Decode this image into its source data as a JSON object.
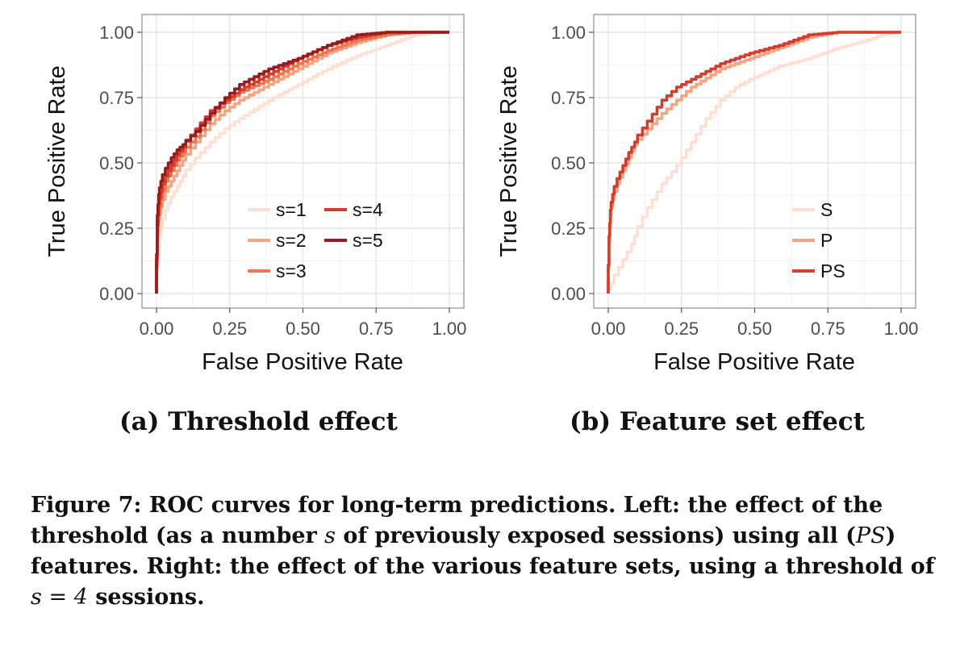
{
  "chart_data": [
    {
      "type": "line",
      "xlabel": "False Positive Rate",
      "ylabel": "True Positive Rate",
      "xlim": [
        0,
        1
      ],
      "ylim": [
        0,
        1
      ],
      "xticks": [
        "0.00",
        "0.25",
        "0.50",
        "0.75",
        "1.00"
      ],
      "yticks": [
        "0.00",
        "0.25",
        "0.50",
        "0.75",
        "1.00"
      ],
      "grid": true,
      "legend_position": "bottom-right",
      "legend_columns": 2,
      "series": [
        {
          "name": "s=1",
          "color": "#fde0d2",
          "x": [
            0,
            0.005,
            0.01,
            0.02,
            0.04,
            0.06,
            0.08,
            0.1,
            0.15,
            0.2,
            0.25,
            0.3,
            0.4,
            0.5,
            0.6,
            0.7,
            0.8,
            0.9,
            1.0
          ],
          "y": [
            0,
            0.1,
            0.18,
            0.25,
            0.32,
            0.37,
            0.41,
            0.45,
            0.52,
            0.58,
            0.63,
            0.67,
            0.74,
            0.8,
            0.86,
            0.91,
            0.95,
            0.99,
            1.0
          ]
        },
        {
          "name": "s=2",
          "color": "#f6a582",
          "x": [
            0,
            0.005,
            0.01,
            0.02,
            0.04,
            0.06,
            0.08,
            0.1,
            0.15,
            0.2,
            0.25,
            0.3,
            0.4,
            0.5,
            0.6,
            0.7,
            0.8,
            0.9,
            1.0
          ],
          "y": [
            0,
            0.2,
            0.28,
            0.33,
            0.39,
            0.43,
            0.47,
            0.51,
            0.58,
            0.65,
            0.7,
            0.74,
            0.8,
            0.86,
            0.92,
            0.96,
            0.99,
            1.0,
            1.0
          ]
        },
        {
          "name": "s=3",
          "color": "#ef7652",
          "x": [
            0,
            0.005,
            0.01,
            0.02,
            0.04,
            0.06,
            0.08,
            0.1,
            0.15,
            0.2,
            0.25,
            0.3,
            0.4,
            0.5,
            0.6,
            0.7,
            0.8,
            0.9,
            1.0
          ],
          "y": [
            0,
            0.22,
            0.3,
            0.36,
            0.43,
            0.47,
            0.51,
            0.54,
            0.6,
            0.68,
            0.73,
            0.77,
            0.82,
            0.88,
            0.93,
            0.97,
            0.99,
            1.0,
            1.0
          ]
        },
        {
          "name": "s=4",
          "color": "#d43d2c",
          "x": [
            0,
            0.005,
            0.01,
            0.02,
            0.04,
            0.06,
            0.08,
            0.1,
            0.15,
            0.2,
            0.25,
            0.3,
            0.4,
            0.5,
            0.6,
            0.7,
            0.8,
            0.9,
            1.0
          ],
          "y": [
            0,
            0.26,
            0.34,
            0.39,
            0.45,
            0.49,
            0.53,
            0.56,
            0.63,
            0.7,
            0.74,
            0.78,
            0.84,
            0.9,
            0.95,
            0.98,
            1.0,
            1.0,
            1.0
          ]
        },
        {
          "name": "s=5",
          "color": "#991b1b",
          "x": [
            0,
            0.005,
            0.01,
            0.02,
            0.04,
            0.06,
            0.08,
            0.1,
            0.15,
            0.2,
            0.25,
            0.3,
            0.4,
            0.5,
            0.6,
            0.7,
            0.8,
            0.9,
            1.0
          ],
          "y": [
            0,
            0.3,
            0.38,
            0.43,
            0.48,
            0.52,
            0.55,
            0.57,
            0.62,
            0.69,
            0.75,
            0.8,
            0.86,
            0.9,
            0.95,
            0.99,
            1.0,
            1.0,
            1.0
          ]
        }
      ]
    },
    {
      "type": "line",
      "xlabel": "False Positive Rate",
      "ylabel": "True Positive Rate",
      "xlim": [
        0,
        1
      ],
      "ylim": [
        0,
        1
      ],
      "xticks": [
        "0.00",
        "0.25",
        "0.50",
        "0.75",
        "1.00"
      ],
      "yticks": [
        "0.00",
        "0.25",
        "0.50",
        "0.75",
        "1.00"
      ],
      "grid": true,
      "legend_position": "bottom-right",
      "legend_columns": 1,
      "series": [
        {
          "name": "S",
          "color": "#fde0d2",
          "x": [
            0,
            0.02,
            0.05,
            0.08,
            0.1,
            0.15,
            0.2,
            0.25,
            0.3,
            0.35,
            0.4,
            0.45,
            0.5,
            0.6,
            0.7,
            0.8,
            0.9,
            0.95,
            1.0
          ],
          "y": [
            0,
            0.04,
            0.1,
            0.16,
            0.22,
            0.33,
            0.42,
            0.49,
            0.58,
            0.67,
            0.74,
            0.79,
            0.82,
            0.87,
            0.9,
            0.94,
            0.97,
            0.99,
            1.0
          ]
        },
        {
          "name": "P",
          "color": "#f6a582",
          "x": [
            0,
            0.005,
            0.01,
            0.02,
            0.04,
            0.06,
            0.08,
            0.1,
            0.15,
            0.2,
            0.25,
            0.3,
            0.4,
            0.5,
            0.6,
            0.7,
            0.8,
            0.9,
            1.0
          ],
          "y": [
            0,
            0.2,
            0.3,
            0.36,
            0.42,
            0.47,
            0.52,
            0.57,
            0.63,
            0.69,
            0.74,
            0.79,
            0.86,
            0.9,
            0.94,
            0.98,
            1.0,
            1.0,
            1.0
          ]
        },
        {
          "name": "PS",
          "color": "#d43d2c",
          "x": [
            0,
            0.005,
            0.01,
            0.02,
            0.04,
            0.06,
            0.08,
            0.1,
            0.15,
            0.2,
            0.25,
            0.3,
            0.4,
            0.5,
            0.6,
            0.7,
            0.8,
            0.9,
            1.0
          ],
          "y": [
            0,
            0.22,
            0.32,
            0.38,
            0.44,
            0.49,
            0.54,
            0.58,
            0.66,
            0.74,
            0.79,
            0.82,
            0.88,
            0.92,
            0.95,
            0.99,
            1.0,
            1.0,
            1.0
          ]
        }
      ]
    }
  ],
  "subcaptions": {
    "a": "(a)  Threshold effect",
    "b": "(b)  Feature set effect"
  },
  "caption": {
    "p1": "Figure 7:  ROC curves for long-term predictions. Left: the effect of the threshold (as a number ",
    "m1": "s",
    "p2": " of previously exposed sessions) using all (",
    "m2": "PS",
    "p3": ") features. Right: the effect of the various feature sets, using a threshold of ",
    "m3": "s = 4",
    "p4": " sessions."
  }
}
